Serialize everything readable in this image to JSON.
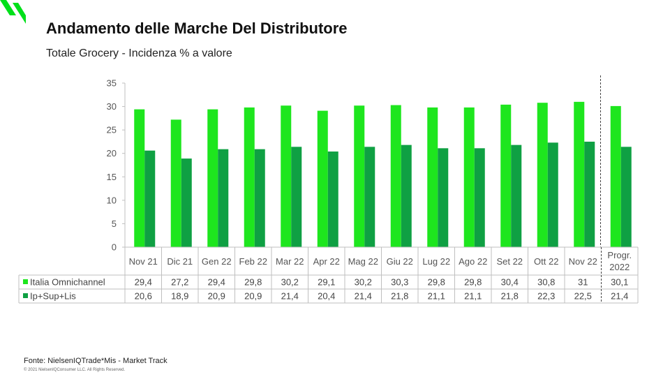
{
  "header": {
    "title": "Andamento delle Marche Del Distributore",
    "subtitle": "Totale Grocery - Incidenza % a valore"
  },
  "footer": {
    "source": "Fonte: NielsenIQTrade*Mis - Market Track",
    "copyright": "© 2021 NielsenIQConsumer LLC. All Rights Reserved."
  },
  "colors": {
    "brand_green": "#00e01a",
    "series1": "#1ee61e",
    "series2": "#0fa043"
  },
  "chart_data": {
    "type": "bar",
    "title": "",
    "xlabel": "",
    "ylabel": "",
    "ylim": [
      0,
      35
    ],
    "yticks": [
      0,
      5,
      10,
      15,
      20,
      25,
      30,
      35
    ],
    "grid": false,
    "legend": "data-table",
    "categories": [
      "Nov 21",
      "Dic 21",
      "Gen 22",
      "Feb 22",
      "Mar 22",
      "Apr 22",
      "Mag 22",
      "Giu 22",
      "Lug 22",
      "Ago 22",
      "Set 22",
      "Ott 22",
      "Nov 22",
      "Progr. 2022"
    ],
    "series": [
      {
        "name": "Italia Omnichannel",
        "values": [
          29.4,
          27.2,
          29.4,
          29.8,
          30.2,
          29.1,
          30.2,
          30.3,
          29.8,
          29.8,
          30.4,
          30.8,
          31,
          30.1
        ],
        "labels": [
          "29,4",
          "27,2",
          "29,4",
          "29,8",
          "30,2",
          "29,1",
          "30,2",
          "30,3",
          "29,8",
          "29,8",
          "30,4",
          "30,8",
          "31",
          "30,1"
        ]
      },
      {
        "name": "Ip+Sup+Lis",
        "values": [
          20.6,
          18.9,
          20.9,
          20.9,
          21.4,
          20.4,
          21.4,
          21.8,
          21.1,
          21.1,
          21.8,
          22.3,
          22.5,
          21.4
        ],
        "labels": [
          "20,6",
          "18,9",
          "20,9",
          "20,9",
          "21,4",
          "20,4",
          "21,4",
          "21,8",
          "21,1",
          "21,1",
          "21,8",
          "22,3",
          "22,5",
          "21,4"
        ]
      }
    ]
  }
}
